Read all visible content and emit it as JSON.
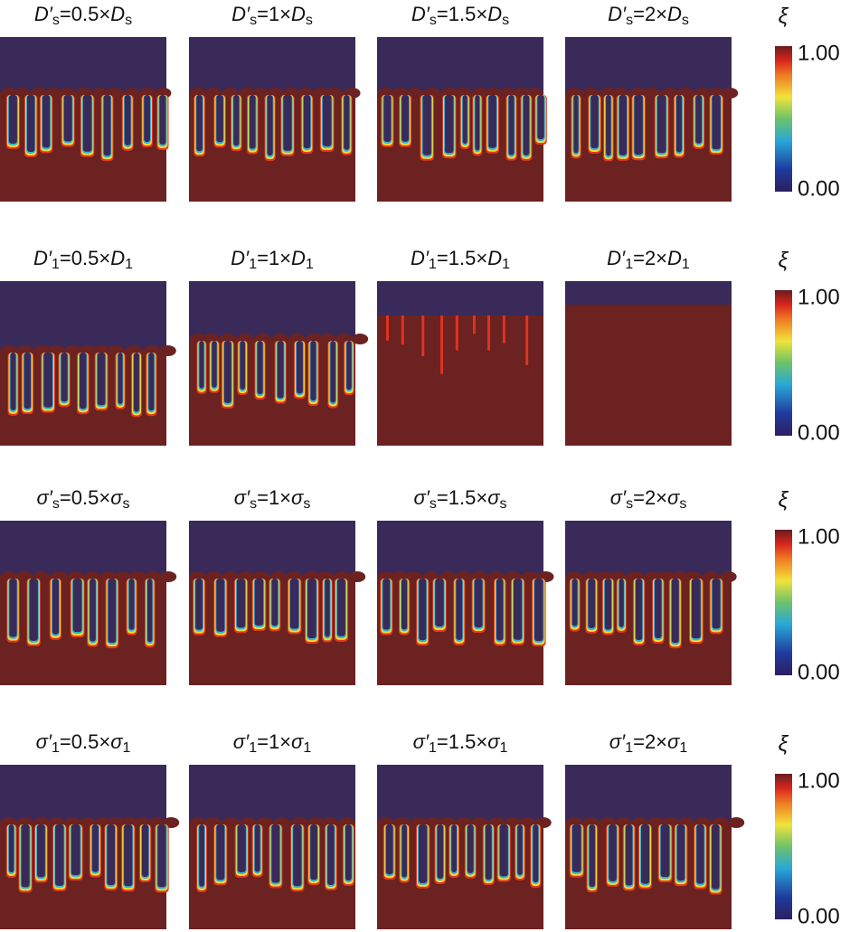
{
  "rows": [
    {
      "titles": [
        [
          [
            "D′",
            "i"
          ],
          [
            "s",
            "sub"
          ],
          [
            "=0.5×",
            "n"
          ],
          [
            "D",
            "i"
          ],
          [
            "s",
            "sub"
          ]
        ],
        [
          [
            "D′",
            "i"
          ],
          [
            "s",
            "sub"
          ],
          [
            "=1×",
            "n"
          ],
          [
            "D",
            "i"
          ],
          [
            "s",
            "sub"
          ]
        ],
        [
          [
            "D′",
            "i"
          ],
          [
            "s",
            "sub"
          ],
          [
            "=1.5×",
            "n"
          ],
          [
            "D",
            "i"
          ],
          [
            "s",
            "sub"
          ]
        ],
        [
          [
            "D′",
            "i"
          ],
          [
            "s",
            "sub"
          ],
          [
            "=2×",
            "n"
          ],
          [
            "D",
            "i"
          ],
          [
            "s",
            "sub"
          ]
        ]
      ],
      "colorbar": {
        "label": "ξ",
        "ticks": [
          "1.00",
          "0.00"
        ]
      }
    },
    {
      "titles": [
        [
          [
            "D′",
            "i"
          ],
          [
            "1",
            "sub"
          ],
          [
            "=0.5×",
            "n"
          ],
          [
            "D",
            "i"
          ],
          [
            "1",
            "sub"
          ]
        ],
        [
          [
            "D′",
            "i"
          ],
          [
            "1",
            "sub"
          ],
          [
            "=1×",
            "n"
          ],
          [
            "D",
            "i"
          ],
          [
            "1",
            "sub"
          ]
        ],
        [
          [
            "D′",
            "i"
          ],
          [
            "1",
            "sub"
          ],
          [
            "=1.5×",
            "n"
          ],
          [
            "D",
            "i"
          ],
          [
            "1",
            "sub"
          ]
        ],
        [
          [
            "D′",
            "i"
          ],
          [
            "1",
            "sub"
          ],
          [
            "=2×",
            "n"
          ],
          [
            "D",
            "i"
          ],
          [
            "1",
            "sub"
          ]
        ]
      ],
      "colorbar": {
        "label": "ξ",
        "ticks": [
          "1.00",
          "0.00"
        ]
      }
    },
    {
      "titles": [
        [
          [
            "σ′",
            "i"
          ],
          [
            "s",
            "sub"
          ],
          [
            "=0.5×",
            "n"
          ],
          [
            "σ",
            "i"
          ],
          [
            "s",
            "sub"
          ]
        ],
        [
          [
            "σ′",
            "i"
          ],
          [
            "s",
            "sub"
          ],
          [
            "=1×",
            "n"
          ],
          [
            "σ",
            "i"
          ],
          [
            "s",
            "sub"
          ]
        ],
        [
          [
            "σ′",
            "i"
          ],
          [
            "s",
            "sub"
          ],
          [
            "=1.5×",
            "n"
          ],
          [
            "σ",
            "i"
          ],
          [
            "s",
            "sub"
          ]
        ],
        [
          [
            "σ′",
            "i"
          ],
          [
            "s",
            "sub"
          ],
          [
            "=2×",
            "n"
          ],
          [
            "σ",
            "i"
          ],
          [
            "s",
            "sub"
          ]
        ]
      ],
      "colorbar": {
        "label": "ξ",
        "ticks": [
          "1.00",
          "0.00"
        ]
      }
    },
    {
      "titles": [
        [
          [
            "σ′",
            "i"
          ],
          [
            "1",
            "sub"
          ],
          [
            "=0.5×",
            "n"
          ],
          [
            "σ",
            "i"
          ],
          [
            "1",
            "sub"
          ]
        ],
        [
          [
            "σ′",
            "i"
          ],
          [
            "1",
            "sub"
          ],
          [
            "=1×",
            "n"
          ],
          [
            "σ",
            "i"
          ],
          [
            "1",
            "sub"
          ]
        ],
        [
          [
            "σ′",
            "i"
          ],
          [
            "1",
            "sub"
          ],
          [
            "=1.5×",
            "n"
          ],
          [
            "σ",
            "i"
          ],
          [
            "1",
            "sub"
          ]
        ],
        [
          [
            "σ′",
            "i"
          ],
          [
            "1",
            "sub"
          ],
          [
            "=2×",
            "n"
          ],
          [
            "σ",
            "i"
          ],
          [
            "1",
            "sub"
          ]
        ]
      ],
      "colorbar": {
        "label": "ξ",
        "ticks": [
          "1.00",
          "0.00"
        ]
      }
    }
  ]
}
